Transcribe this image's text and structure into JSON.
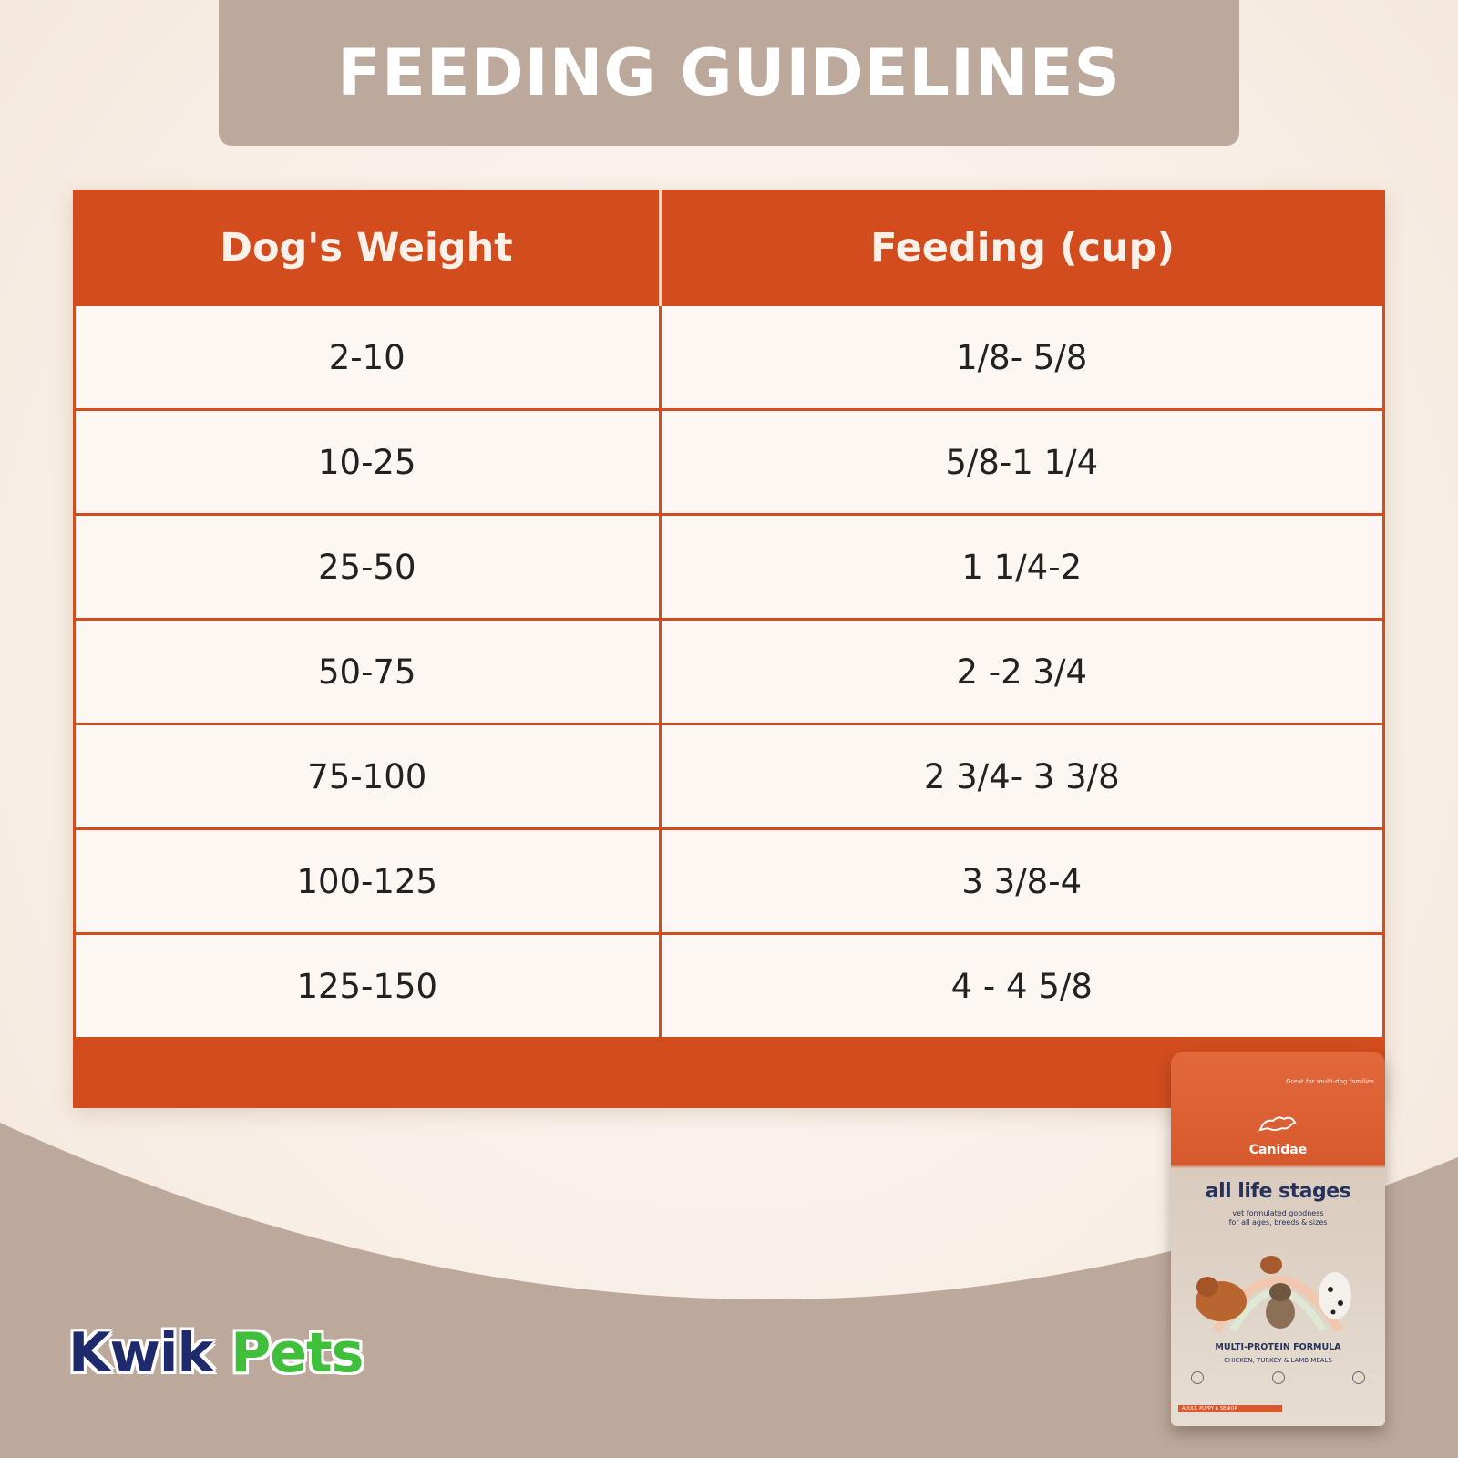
{
  "title": "FEEDING GUIDELINES",
  "table": {
    "headers": [
      "Dog's Weight",
      "Feeding (cup)"
    ],
    "rows": [
      [
        "2-10",
        "1/8- 5/8"
      ],
      [
        "10-25",
        "5/8-1 1/4"
      ],
      [
        "25-50",
        "1 1/4-2"
      ],
      [
        "50-75",
        "2 -2 3/4"
      ],
      [
        "75-100",
        "2 3/4- 3 3/8"
      ],
      [
        "100-125",
        "3 3/8-4"
      ],
      [
        "125-150",
        "4 - 4 5/8"
      ]
    ]
  },
  "logo": {
    "part1": "Kwik",
    "part2": "Pets"
  },
  "product": {
    "topline": "Great for multi-dog families",
    "brand": "Canidae",
    "headline": "all life stages",
    "tagline1": "vet formulated goodness",
    "tagline2": "for all ages, breeds & sizes",
    "formula": "MULTI-PROTEIN FORMULA",
    "proteins": "CHICKEN, TURKEY & LAMB MEALS",
    "stage": "ADULT, PUPPY & SENIOR"
  },
  "colors": {
    "banner": "#bda99b",
    "accent": "#d24c1e",
    "row_bg": "#fcf7f2",
    "logo_kwik": "#1e2a6b",
    "logo_pets": "#3fbf3a"
  }
}
